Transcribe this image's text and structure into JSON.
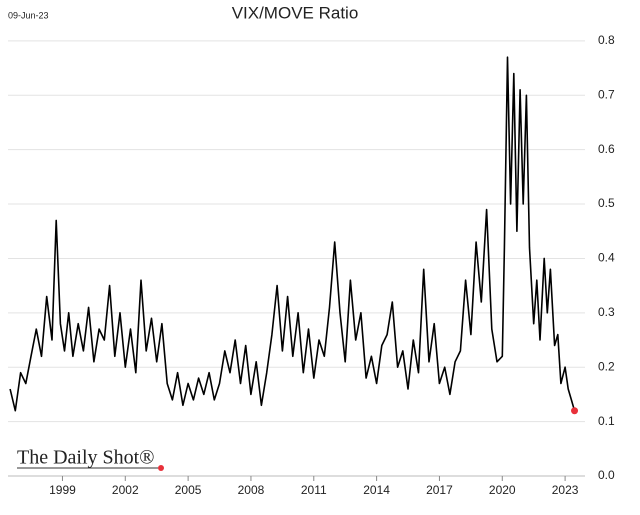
{
  "chart_data": {
    "type": "line",
    "title": "VIX/MOVE Ratio",
    "date": "09-Jun-23",
    "source": "The Daily Shot®",
    "x": [
      1996.5,
      1996.75,
      1997.0,
      1997.25,
      1997.5,
      1997.75,
      1998.0,
      1998.25,
      1998.5,
      1998.7,
      1998.9,
      1999.1,
      1999.3,
      1999.5,
      1999.75,
      2000.0,
      2000.25,
      2000.5,
      2000.75,
      2001.0,
      2001.25,
      2001.5,
      2001.75,
      2002.0,
      2002.25,
      2002.5,
      2002.75,
      2003.0,
      2003.25,
      2003.5,
      2003.75,
      2004.0,
      2004.25,
      2004.5,
      2004.75,
      2005.0,
      2005.25,
      2005.5,
      2005.75,
      2006.0,
      2006.25,
      2006.5,
      2006.75,
      2007.0,
      2007.25,
      2007.5,
      2007.75,
      2008.0,
      2008.25,
      2008.5,
      2008.75,
      2009.0,
      2009.25,
      2009.5,
      2009.75,
      2010.0,
      2010.25,
      2010.5,
      2010.75,
      2011.0,
      2011.25,
      2011.5,
      2011.75,
      2012.0,
      2012.25,
      2012.5,
      2012.75,
      2013.0,
      2013.25,
      2013.5,
      2013.75,
      2014.0,
      2014.25,
      2014.5,
      2014.75,
      2015.0,
      2015.25,
      2015.5,
      2015.75,
      2016.0,
      2016.25,
      2016.5,
      2016.75,
      2017.0,
      2017.25,
      2017.5,
      2017.75,
      2018.0,
      2018.25,
      2018.5,
      2018.75,
      2019.0,
      2019.25,
      2019.5,
      2019.75,
      2020.0,
      2020.1,
      2020.25,
      2020.4,
      2020.55,
      2020.7,
      2020.85,
      2021.0,
      2021.15,
      2021.3,
      2021.5,
      2021.65,
      2021.8,
      2022.0,
      2022.15,
      2022.3,
      2022.5,
      2022.65,
      2022.8,
      2023.0,
      2023.15,
      2023.3,
      2023.45
    ],
    "series": [
      {
        "color": "#000000",
        "values": [
          0.16,
          0.12,
          0.19,
          0.17,
          0.22,
          0.27,
          0.22,
          0.33,
          0.25,
          0.47,
          0.28,
          0.23,
          0.3,
          0.22,
          0.28,
          0.23,
          0.31,
          0.21,
          0.27,
          0.25,
          0.35,
          0.22,
          0.3,
          0.2,
          0.27,
          0.19,
          0.36,
          0.23,
          0.29,
          0.21,
          0.28,
          0.17,
          0.14,
          0.19,
          0.13,
          0.17,
          0.14,
          0.18,
          0.15,
          0.19,
          0.14,
          0.17,
          0.23,
          0.19,
          0.25,
          0.17,
          0.24,
          0.15,
          0.21,
          0.13,
          0.19,
          0.26,
          0.35,
          0.23,
          0.33,
          0.22,
          0.3,
          0.19,
          0.27,
          0.18,
          0.25,
          0.22,
          0.31,
          0.43,
          0.3,
          0.21,
          0.36,
          0.25,
          0.3,
          0.18,
          0.22,
          0.17,
          0.24,
          0.26,
          0.32,
          0.2,
          0.23,
          0.16,
          0.25,
          0.19,
          0.38,
          0.21,
          0.28,
          0.17,
          0.2,
          0.15,
          0.21,
          0.23,
          0.36,
          0.26,
          0.43,
          0.32,
          0.49,
          0.27,
          0.21,
          0.22,
          0.42,
          0.77,
          0.5,
          0.74,
          0.45,
          0.71,
          0.5,
          0.7,
          0.42,
          0.28,
          0.36,
          0.25,
          0.4,
          0.3,
          0.38,
          0.24,
          0.26,
          0.17,
          0.2,
          0.16,
          0.14,
          0.12
        ]
      }
    ],
    "last_point_color": "#e8303a",
    "xlim": [
      1996.4,
      2023.95
    ],
    "xticks": [
      1999,
      2002,
      2005,
      2008,
      2011,
      2014,
      2017,
      2020,
      2023
    ],
    "ylim": [
      0,
      0.82
    ],
    "yticks": [
      {
        "value": 0,
        "label": "0.0"
      },
      0.1,
      0.2,
      0.3,
      0.4,
      0.5,
      0.6,
      0.7,
      0.8
    ],
    "grid": true
  }
}
